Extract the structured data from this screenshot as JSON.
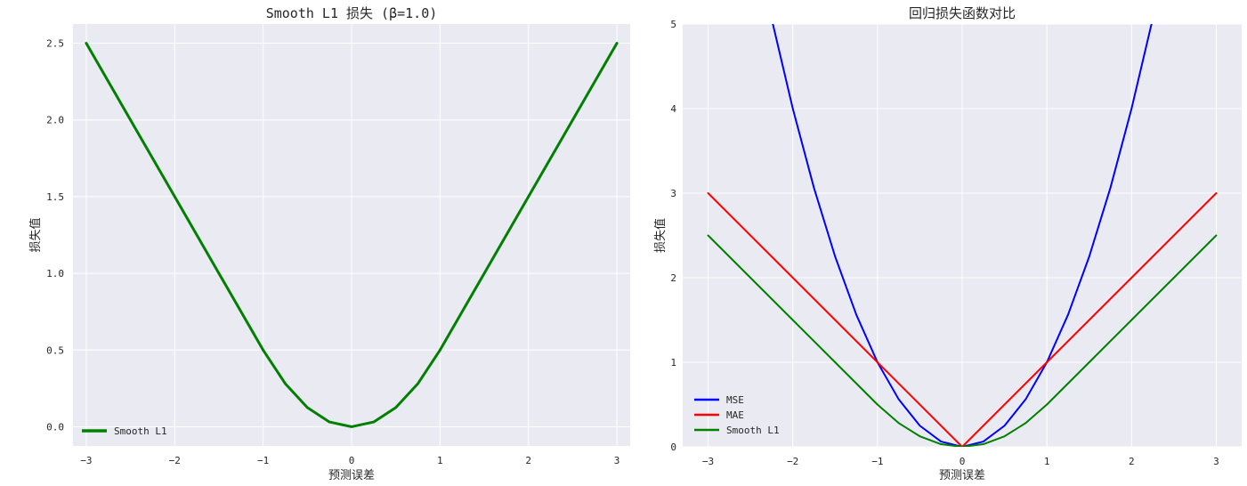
{
  "chart_data": [
    {
      "type": "line",
      "title": "Smooth L1 损失 (β=1.0)",
      "xlabel": "预测误差",
      "ylabel": "损失值",
      "xlim": [
        -3.15,
        3.15
      ],
      "ylim": [
        -0.125,
        2.625
      ],
      "xticks": [
        -3,
        -2,
        -1,
        0,
        1,
        2,
        3
      ],
      "xtick_labels": [
        "−3",
        "−2",
        "−1",
        "0",
        "1",
        "2",
        "3"
      ],
      "yticks": [
        0.0,
        0.5,
        1.0,
        1.5,
        2.0,
        2.5
      ],
      "ytick_labels": [
        "0.0",
        "0.5",
        "1.0",
        "1.5",
        "2.0",
        "2.5"
      ],
      "grid": true,
      "legend_position": "lower-left",
      "series": [
        {
          "name": "Smooth L1",
          "color": "#008000",
          "line_width": 3,
          "x": [
            -3,
            -2.5,
            -2,
            -1.5,
            -1,
            -0.75,
            -0.5,
            -0.25,
            0,
            0.25,
            0.5,
            0.75,
            1,
            1.5,
            2,
            2.5,
            3
          ],
          "y": [
            2.5,
            2.0,
            1.5,
            1.0,
            0.5,
            0.28125,
            0.125,
            0.03125,
            0,
            0.03125,
            0.125,
            0.28125,
            0.5,
            1.0,
            1.5,
            2.0,
            2.5
          ]
        }
      ]
    },
    {
      "type": "line",
      "title": "回归损失函数对比",
      "xlabel": "预测误差",
      "ylabel": "损失值",
      "xlim": [
        -3.3,
        3.3
      ],
      "ylim": [
        0,
        5
      ],
      "xticks": [
        -3,
        -2,
        -1,
        0,
        1,
        2,
        3
      ],
      "xtick_labels": [
        "−3",
        "−2",
        "−1",
        "0",
        "1",
        "2",
        "3"
      ],
      "yticks": [
        0,
        1,
        2,
        3,
        4,
        5
      ],
      "ytick_labels": [
        "0",
        "1",
        "2",
        "3",
        "4",
        "5"
      ],
      "grid": true,
      "legend_position": "lower-left",
      "series": [
        {
          "name": "MSE",
          "color": "#0000ff",
          "line_width": 2,
          "x": [
            -2.25,
            -2,
            -1.75,
            -1.5,
            -1.25,
            -1,
            -0.75,
            -0.5,
            -0.25,
            0,
            0.25,
            0.5,
            0.75,
            1,
            1.25,
            1.5,
            1.75,
            2,
            2.25
          ],
          "y": [
            5.0625,
            4,
            3.0625,
            2.25,
            1.5625,
            1,
            0.5625,
            0.25,
            0.0625,
            0,
            0.0625,
            0.25,
            0.5625,
            1,
            1.5625,
            2.25,
            3.0625,
            4,
            5.0625
          ]
        },
        {
          "name": "MAE",
          "color": "#ff0000",
          "line_width": 2,
          "x": [
            -3,
            0,
            3
          ],
          "y": [
            3,
            0,
            3
          ]
        },
        {
          "name": "Smooth L1",
          "color": "#008000",
          "line_width": 2,
          "x": [
            -3,
            -2.5,
            -2,
            -1.5,
            -1,
            -0.75,
            -0.5,
            -0.25,
            0,
            0.25,
            0.5,
            0.75,
            1,
            1.5,
            2,
            2.5,
            3
          ],
          "y": [
            2.5,
            2.0,
            1.5,
            1.0,
            0.5,
            0.28125,
            0.125,
            0.03125,
            0,
            0.03125,
            0.125,
            0.28125,
            0.5,
            1.0,
            1.5,
            2.0,
            2.5
          ]
        }
      ]
    }
  ]
}
